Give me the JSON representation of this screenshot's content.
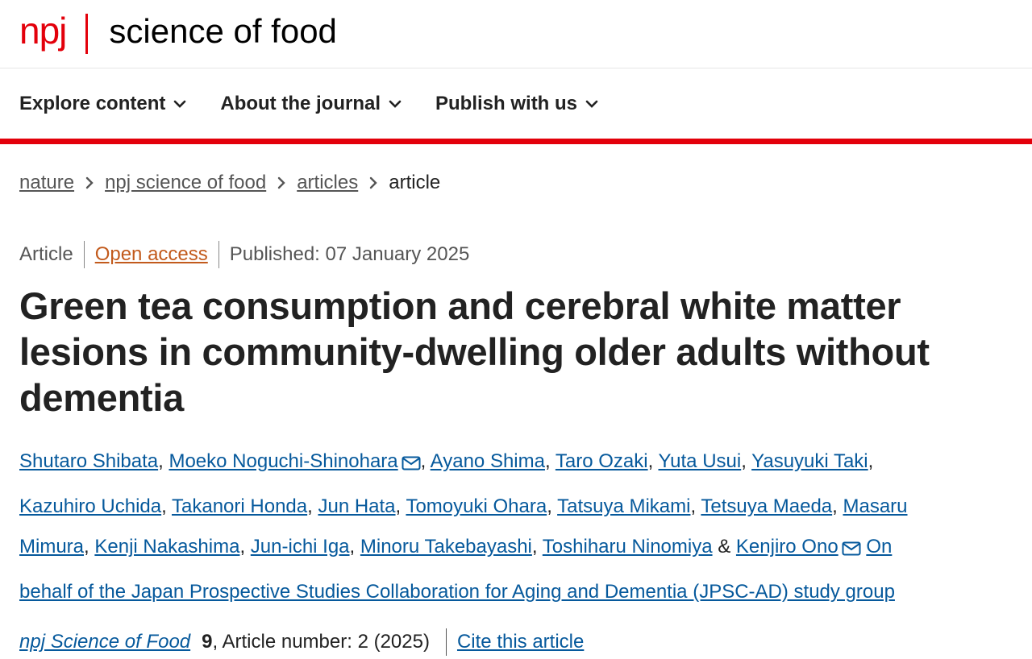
{
  "brand": {
    "npj": "npj",
    "title": "science of food",
    "color": "#e3000b"
  },
  "nav": {
    "items": [
      {
        "label": "Explore content",
        "icon": "chevron-down-icon"
      },
      {
        "label": "About the journal",
        "icon": "chevron-down-icon"
      },
      {
        "label": "Publish with us",
        "icon": "chevron-down-icon"
      }
    ]
  },
  "breadcrumb": {
    "items": [
      "nature",
      "npj science of food",
      "articles"
    ],
    "current": "article"
  },
  "article": {
    "type": "Article",
    "access": "Open access",
    "published": "Published: 07 January 2025",
    "title": "Green tea consumption and cerebral white matter lesions in community-dwelling older adults without dementia",
    "authors": [
      "Shutaro Shibata",
      "Moeko Noguchi-Shinohara",
      "Ayano Shima",
      "Taro Ozaki",
      "Yuta Usui",
      "Yasuyuki Taki",
      "Kazuhiro Uchida",
      "Takanori Honda",
      "Jun Hata",
      "Tomoyuki Ohara",
      "Tatsuya Mikami",
      "Tetsuya Maeda",
      "Masaru Mimura",
      "Kenji Nakashima",
      "Jun-ichi Iga",
      "Minoru Takebayashi",
      "Toshiharu Ninomiya",
      "Kenjiro Ono"
    ],
    "comma": ",",
    "ampersand": "&",
    "group": "On behalf of the Japan Prospective Studies Collaboration for Aging and Dementia (JPSC-AD) study group",
    "journal": "npj Science of Food",
    "volume": "9",
    "article_number": ", Article number: 2 (2025)",
    "cite": "Cite this article",
    "link_color": "#06599c"
  }
}
